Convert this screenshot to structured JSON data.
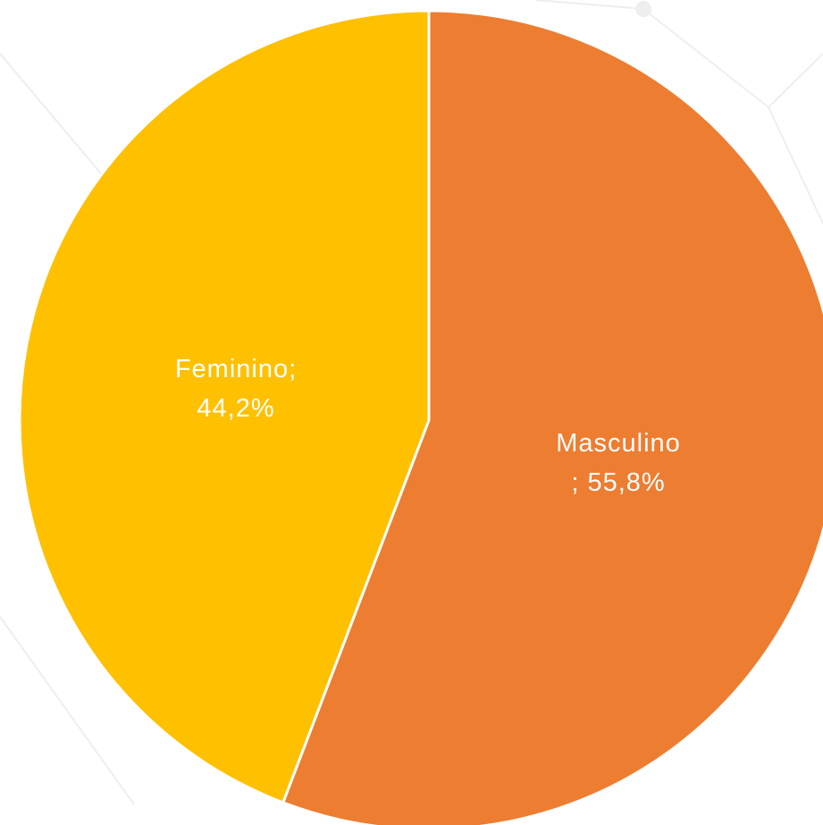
{
  "chart_data": {
    "type": "pie",
    "title": "",
    "slices": [
      {
        "label": "Masculino",
        "value": 55.8,
        "display": "55,8%",
        "color": "#ED7D31",
        "label_lines": [
          "Masculino",
          "; 55,8%"
        ]
      },
      {
        "label": "Feminino",
        "value": 44.2,
        "display": "44,2%",
        "color": "#FFC000",
        "label_lines": [
          "Feminino;",
          "44,2%"
        ]
      }
    ],
    "start_angle_deg": 0,
    "direction": "clockwise",
    "legend": "none",
    "separator_color": "#FFFFFF",
    "background_color": "#FFFFFF",
    "background_pattern_color": "#EEEEEE"
  }
}
